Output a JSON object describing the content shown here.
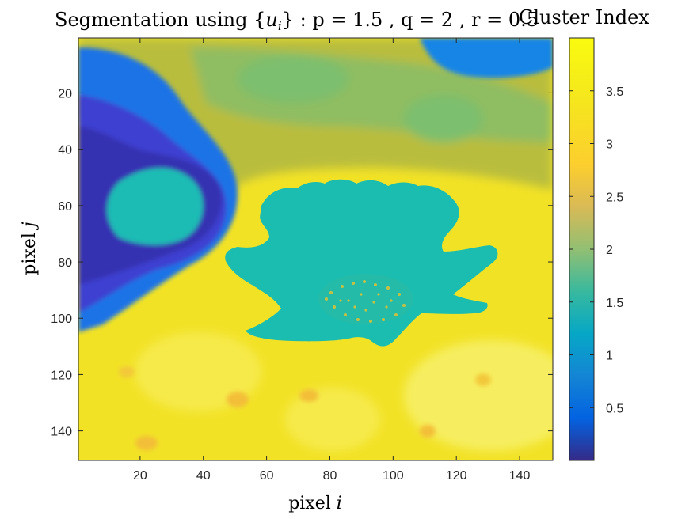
{
  "chart_data": {
    "type": "heatmap",
    "title": "Segmentation using {u_i} : p = 1.5 , q = 2 , r = 0.5",
    "title_parts": {
      "prefix": "Segmentation using ",
      "var": "u",
      "subscript": "i",
      "suffix": " : p = 1.5 , q = 2 , r = 0.5"
    },
    "xlabel": "pixel i",
    "xlabel_parts": {
      "text": "pixel ",
      "var": "i"
    },
    "ylabel": "pixel j",
    "ylabel_parts": {
      "text": "pixel ",
      "var": "j"
    },
    "xlim": [
      0.5,
      150.5
    ],
    "ylim": [
      0.5,
      150.5
    ],
    "y_reversed": true,
    "x_ticks": [
      20,
      40,
      60,
      80,
      100,
      120,
      140
    ],
    "y_ticks": [
      20,
      40,
      60,
      80,
      100,
      120,
      140
    ],
    "colormap": "parula",
    "colorbar": {
      "title": "Cluster Index",
      "clim": [
        0,
        4
      ],
      "ticks": [
        0.5,
        1,
        1.5,
        2,
        2.5,
        3,
        3.5
      ]
    },
    "grid": false
  }
}
